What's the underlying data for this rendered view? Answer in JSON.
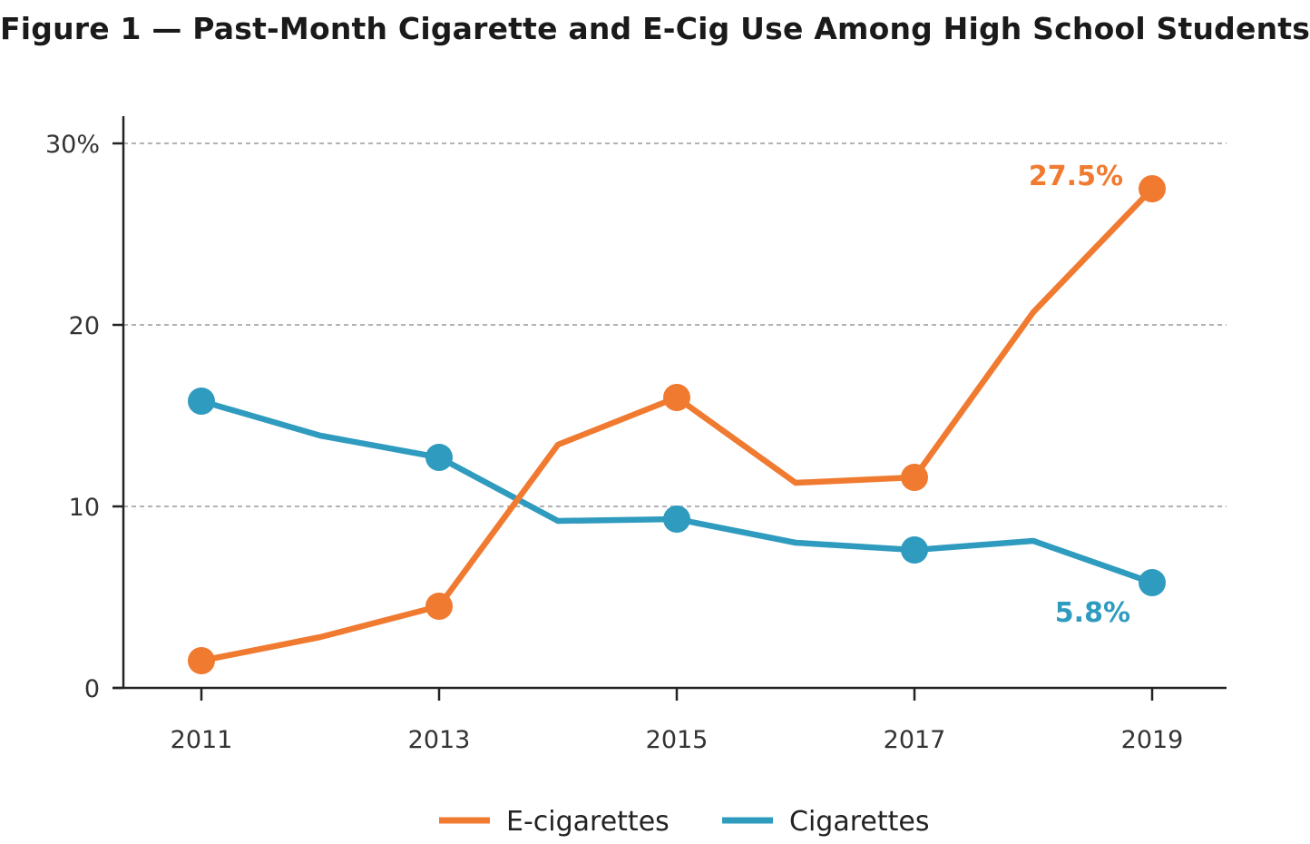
{
  "colors": {
    "ecig": "#F07A30",
    "cig": "#2F9BBF",
    "axis": "#222222",
    "grid": "#9a9a9a"
  },
  "chart_data": {
    "type": "line",
    "title": "Figure 1 — Past-Month Cigarette and E-Cig Use Among High School Students",
    "xlabel": "",
    "ylabel": "",
    "x": [
      2011,
      2012,
      2013,
      2014,
      2015,
      2016,
      2017,
      2018,
      2019
    ],
    "x_tick_values": [
      2011,
      2013,
      2015,
      2017,
      2019
    ],
    "x_tick_labels": [
      "2011",
      "2013",
      "2015",
      "2017",
      "2019"
    ],
    "y_tick_values": [
      0,
      10,
      20,
      30
    ],
    "y_tick_labels": [
      "0",
      "10",
      "20",
      "30%"
    ],
    "ylim": [
      0,
      30
    ],
    "xlim": [
      2010.33,
      2019.62
    ],
    "grid": "horizontal dashed at 10, 20, 30",
    "legend_position": "bottom-center",
    "series": [
      {
        "name": "E-cigarettes",
        "values": [
          1.5,
          2.8,
          4.5,
          13.4,
          16.0,
          11.3,
          11.6,
          20.7,
          27.5
        ],
        "marker_years": [
          2011,
          2013,
          2015,
          2017,
          2019
        ],
        "end_label": "27.5%"
      },
      {
        "name": "Cigarettes",
        "values": [
          15.8,
          13.9,
          12.7,
          9.2,
          9.3,
          8.0,
          7.6,
          8.1,
          5.8
        ],
        "marker_years": [
          2011,
          2013,
          2015,
          2017,
          2019
        ],
        "end_label": "5.8%"
      }
    ]
  }
}
